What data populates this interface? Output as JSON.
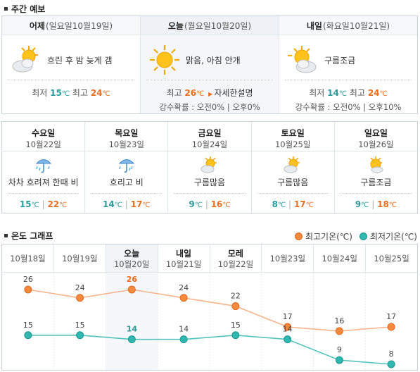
{
  "weekly_title": "주간 예보",
  "three_day": [
    {
      "name": "어제",
      "date": "(일요일10월19일)",
      "desc": "흐린 후 밤 늦게 갬",
      "icon": "sun-cloud-icon",
      "low_label": "최저",
      "low": "15",
      "high_label": "최고",
      "high": "24",
      "unit": "℃"
    },
    {
      "name": "오늘",
      "date": "(월요일10월20일)",
      "desc": "맑음, 아침 안개",
      "icon": "sun-icon",
      "low_label": "",
      "low": "",
      "high_label": "최고",
      "high": "26",
      "unit": "℃",
      "detail": "자세한설명",
      "rain_label": "강수확률 :",
      "rain_am": "오전0%",
      "rain_sep": "|",
      "rain_pm": "오후0%"
    },
    {
      "name": "내일",
      "date": "(화요일10월21일)",
      "desc": "구름조금",
      "icon": "sun-cloud-icon",
      "low_label": "최저",
      "low": "14",
      "high_label": "최고",
      "high": "24",
      "unit": "℃",
      "rain_label": "강수확률 :",
      "rain_am": "오전0%",
      "rain_sep": "|",
      "rain_pm": "오후10%"
    }
  ],
  "five_day": [
    {
      "day": "수요일",
      "date": "10월22일",
      "desc": "차차 흐려져 한때 비",
      "icon": "umbrella-rain-icon",
      "low": "15",
      "high": "22",
      "unit": "℃",
      "sep": "|"
    },
    {
      "day": "목요일",
      "date": "10월23일",
      "desc": "흐리고 비",
      "icon": "umbrella-rain-icon",
      "low": "14",
      "high": "17",
      "unit": "℃",
      "sep": "|"
    },
    {
      "day": "금요일",
      "date": "10월24일",
      "desc": "구름많음",
      "icon": "sun-cloud-icon",
      "low": "9",
      "high": "16",
      "unit": "℃",
      "sep": "|"
    },
    {
      "day": "토요일",
      "date": "10월25일",
      "desc": "구름많음",
      "icon": "sun-cloud-icon",
      "low": "8",
      "high": "17",
      "unit": "℃",
      "sep": "|"
    },
    {
      "day": "일요일",
      "date": "10월26일",
      "desc": "구름조금",
      "icon": "sun-cloud-icon",
      "low": "9",
      "high": "18",
      "unit": "℃",
      "sep": "|"
    }
  ],
  "graph_title": "온도 그래프",
  "legend": {
    "high": "최고기온(℃)",
    "low": "최저기온(℃)"
  },
  "colors": {
    "high": "#f58a3d",
    "low": "#2fb7b0",
    "high_line": "#f7b48a",
    "low_line": "#52c3bd"
  },
  "chart_data": {
    "type": "line",
    "categories": [
      "10월18일",
      "10월19일",
      "10월20일",
      "10월21일",
      "10월22일",
      "10월23일",
      "10월24일",
      "10월25일"
    ],
    "category_names": [
      "",
      "",
      "오늘",
      "내일",
      "모레",
      "",
      "",
      ""
    ],
    "today_index": 2,
    "series": [
      {
        "name": "최고기온(℃)",
        "values": [
          26,
          24,
          26,
          24,
          22,
          17,
          16,
          17
        ]
      },
      {
        "name": "최저기온(℃)",
        "values": [
          15,
          15,
          14,
          14,
          15,
          14,
          9,
          8
        ]
      }
    ]
  }
}
